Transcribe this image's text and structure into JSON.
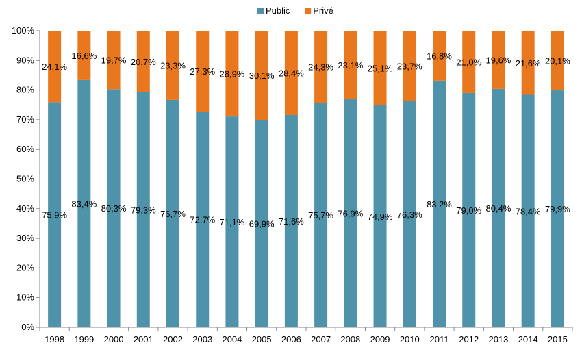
{
  "chart_data": {
    "type": "bar",
    "stacked": true,
    "percent": true,
    "categories": [
      "1998",
      "1999",
      "2000",
      "2001",
      "2002",
      "2003",
      "2004",
      "2005",
      "2006",
      "2007",
      "2008",
      "2009",
      "2010",
      "2011",
      "2012",
      "2013",
      "2014",
      "2015"
    ],
    "series": [
      {
        "name": "Public",
        "color": "#4F93AA",
        "values": [
          75.9,
          83.4,
          80.3,
          79.3,
          76.7,
          72.7,
          71.1,
          69.9,
          71.6,
          75.7,
          76.9,
          74.9,
          76.3,
          83.2,
          79.0,
          80.4,
          78.4,
          79.9
        ],
        "labels": [
          "75,9%",
          "83,4%",
          "80,3%",
          "79,3%",
          "76,7%",
          "72,7%",
          "71,1%",
          "69,9%",
          "71,6%",
          "75,7%",
          "76,9%",
          "74,9%",
          "76,3%",
          "83,2%",
          "79,0%",
          "80,4%",
          "78,4%",
          "79,9%"
        ]
      },
      {
        "name": "Privé",
        "color": "#E9771E",
        "values": [
          24.1,
          16.6,
          19.7,
          20.7,
          23.3,
          27.3,
          28.9,
          30.1,
          28.4,
          24.3,
          23.1,
          25.1,
          23.7,
          16.8,
          21.0,
          19.6,
          21.6,
          20.1
        ],
        "labels": [
          "24,1%",
          "16,6%",
          "19,7%",
          "20,7%",
          "23,3%",
          "27,3%",
          "28,9%",
          "30,1%",
          "28,4%",
          "24,3%",
          "23,1%",
          "25,1%",
          "23,7%",
          "16,8%",
          "21,0%",
          "19,6%",
          "21,6%",
          "20,1%"
        ]
      }
    ],
    "ylim": [
      0,
      100
    ],
    "yticks": [
      "0%",
      "10%",
      "20%",
      "30%",
      "40%",
      "50%",
      "60%",
      "70%",
      "80%",
      "90%",
      "100%"
    ],
    "legend_position": "top",
    "grid": false
  }
}
